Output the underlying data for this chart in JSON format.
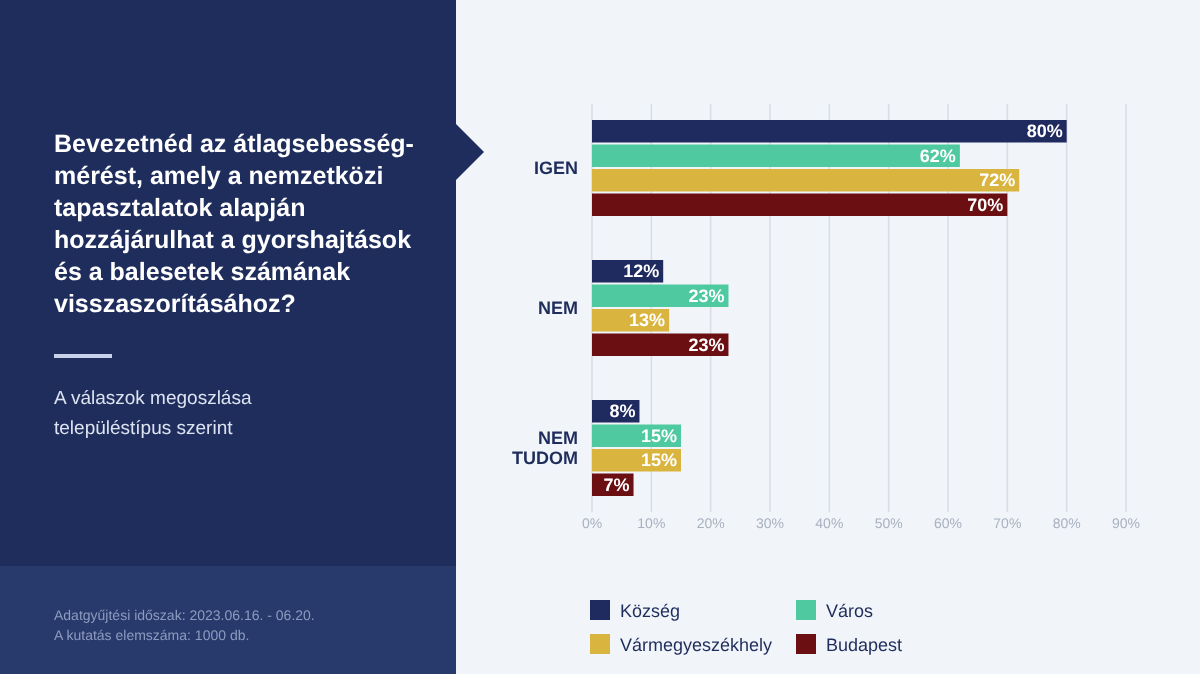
{
  "chart_data": {
    "type": "bar",
    "orientation": "horizontal",
    "title": "Bevezetnéd az átlagsebesség-mérést, amely a nemzetközi tapasztalatok alapján hozzájárulhat a gyorshajtások és a balesetek számának visszaszorításához?",
    "subtitle": "A válaszok megoszlása településtípus szerint",
    "annotations": [
      "Adatgyűjtési időszak: 2023.06.16. - 06.20.",
      "A kutatás elemszáma: 1000 db."
    ],
    "categories": [
      "IGEN",
      "NEM",
      "NEM TUDOM"
    ],
    "series": [
      {
        "name": "Község",
        "color": "#1f2a5e",
        "values": [
          80,
          12,
          8
        ],
        "value_labels": [
          "80%",
          "12%",
          "8%"
        ]
      },
      {
        "name": "Város",
        "color": "#4ec9a0",
        "values": [
          62,
          23,
          15
        ],
        "value_labels": [
          "62%",
          "23%",
          "15%"
        ]
      },
      {
        "name": "Vármegyeszékhely",
        "color": "#d9b53f",
        "values": [
          72,
          13,
          15
        ],
        "value_labels": [
          "72%",
          "13%",
          "15%"
        ]
      },
      {
        "name": "Budapest",
        "color": "#6b0f12",
        "values": [
          70,
          23,
          7
        ],
        "value_labels": [
          "70%",
          "23%",
          "7%"
        ]
      }
    ],
    "xlim": [
      0,
      90
    ],
    "xticks": [
      {
        "value": 0,
        "label": "0%"
      },
      {
        "value": 10,
        "label": "10%"
      },
      {
        "value": 20,
        "label": "20%"
      },
      {
        "value": 30,
        "label": "30%"
      },
      {
        "value": 40,
        "label": "40%"
      },
      {
        "value": 50,
        "label": "50%"
      },
      {
        "value": 60,
        "label": "60%"
      },
      {
        "value": 70,
        "label": "70%"
      },
      {
        "value": 80,
        "label": "80%"
      },
      {
        "value": 90,
        "label": "90%"
      }
    ],
    "grid": "x",
    "legend": "bottom"
  }
}
